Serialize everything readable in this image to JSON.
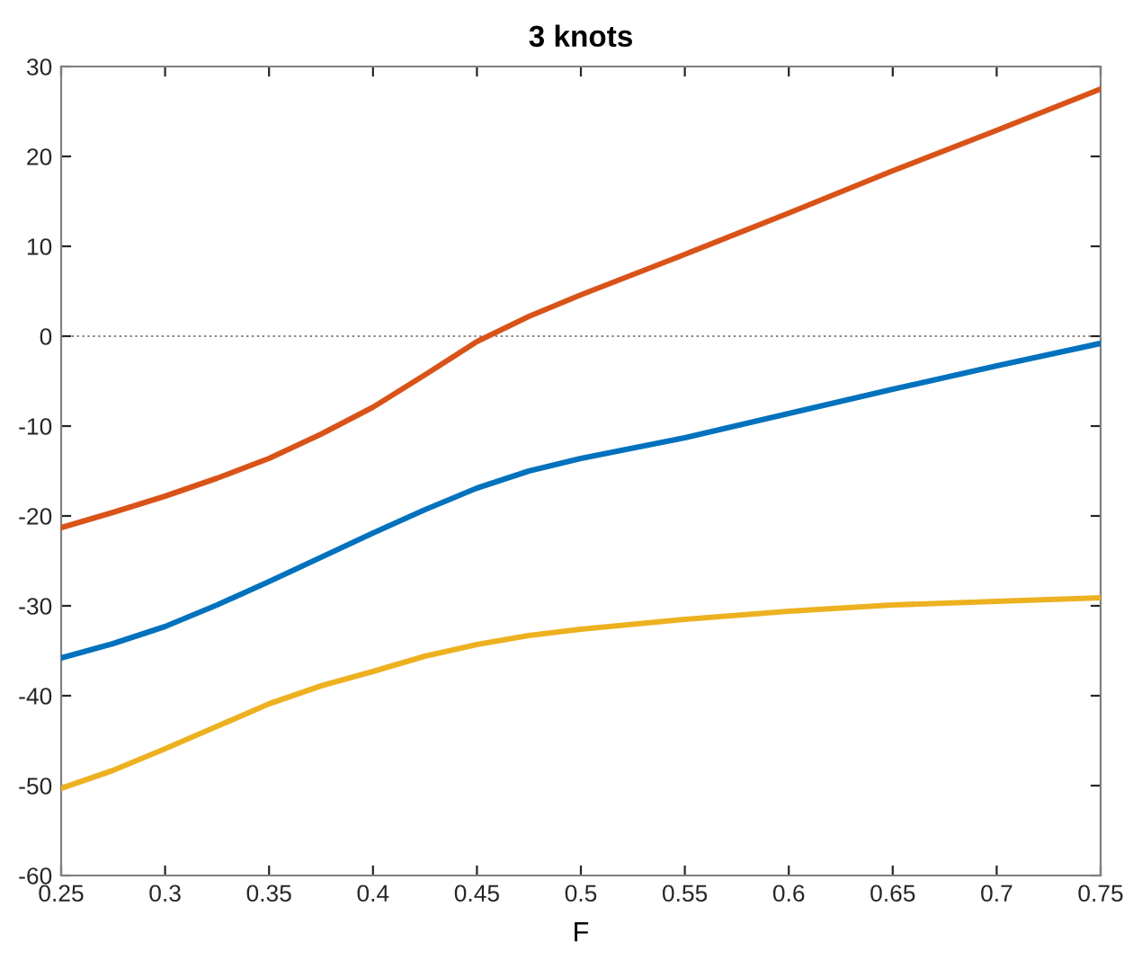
{
  "chart_data": {
    "type": "line",
    "title": "3 knots",
    "xlabel": "F",
    "x": [
      0.25,
      0.275,
      0.3,
      0.325,
      0.35,
      0.375,
      0.4,
      0.425,
      0.45,
      0.475,
      0.5,
      0.55,
      0.6,
      0.65,
      0.7,
      0.75
    ],
    "series": [
      {
        "color": "#d95319",
        "values": [
          -21.3,
          -19.6,
          -17.8,
          -15.8,
          -13.6,
          -10.9,
          -7.9,
          -4.3,
          -0.6,
          2.2,
          4.6,
          9.1,
          13.7,
          18.4,
          22.9,
          27.5
        ]
      },
      {
        "color": "#0072bd",
        "values": [
          -35.8,
          -34.2,
          -32.3,
          -29.9,
          -27.3,
          -24.6,
          -21.9,
          -19.3,
          -16.9,
          -15.0,
          -13.6,
          -11.3,
          -8.6,
          -5.9,
          -3.3,
          -0.8
        ]
      },
      {
        "color": "#edb120",
        "values": [
          -50.3,
          -48.3,
          -45.9,
          -43.4,
          -40.9,
          -38.9,
          -37.3,
          -35.6,
          -34.3,
          -33.3,
          -32.6,
          -31.5,
          -30.6,
          -29.9,
          -29.5,
          -29.1
        ]
      }
    ],
    "xlim": [
      0.25,
      0.75
    ],
    "xticks": [
      0.25,
      0.3,
      0.35,
      0.4,
      0.45,
      0.5,
      0.55,
      0.6,
      0.65,
      0.7,
      0.75
    ],
    "ylim": [
      -60,
      30
    ],
    "yticks": [
      -60,
      -50,
      -40,
      -30,
      -20,
      -10,
      0,
      10,
      20,
      30
    ],
    "ref_lines": [
      {
        "axis": "y",
        "value": 0,
        "color": "#808080",
        "line_style": "dotted"
      }
    ],
    "grid": false,
    "legend": false,
    "marker": "none",
    "line_style": "solid"
  }
}
